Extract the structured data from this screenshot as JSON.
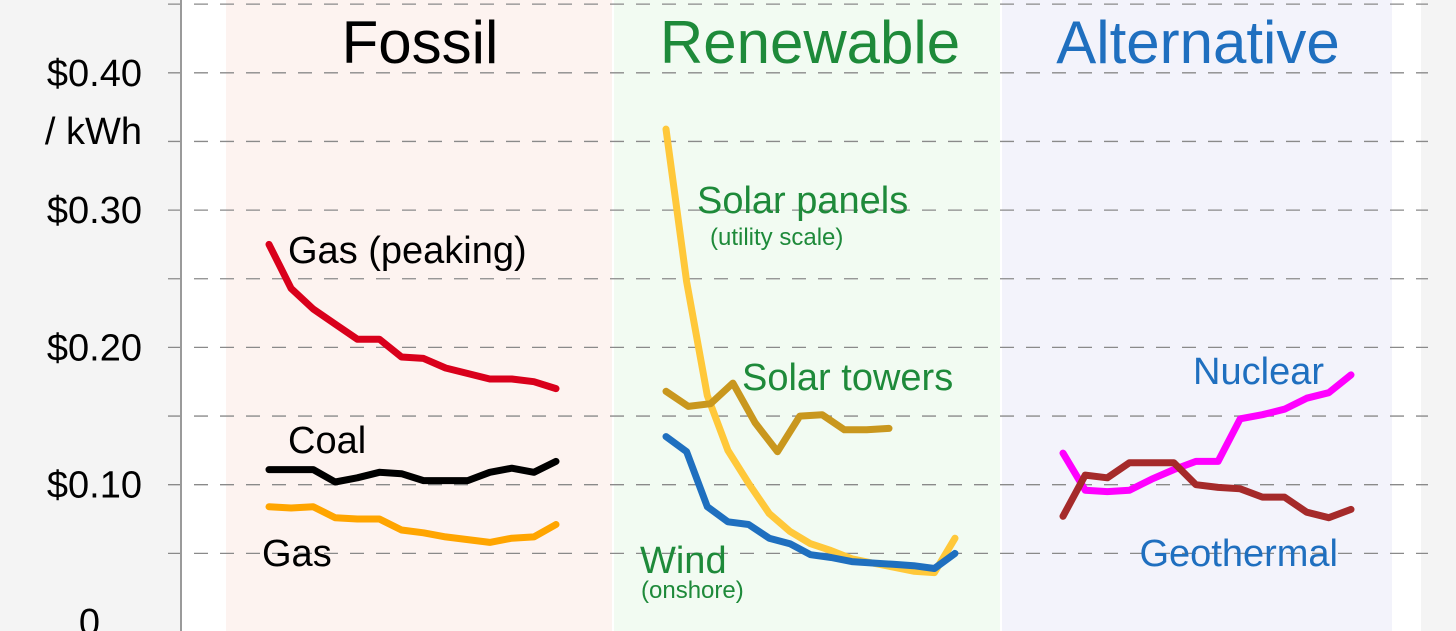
{
  "chart_data": {
    "type": "line",
    "title": "",
    "xlabel": "",
    "ylabel": "",
    "y_unit_label": "/ kWh",
    "ylim": [
      0,
      0.45
    ],
    "y_ticks": [
      {
        "value": 0.0,
        "label": "0"
      },
      {
        "value": 0.1,
        "label": "$0.10"
      },
      {
        "value": 0.2,
        "label": "$0.20"
      },
      {
        "value": 0.3,
        "label": "$0.30"
      },
      {
        "value": 0.4,
        "label": "$0.40"
      }
    ],
    "gridlines": [
      0.05,
      0.1,
      0.15,
      0.2,
      0.25,
      0.3,
      0.35,
      0.4,
      0.45
    ],
    "grid": true,
    "groups": [
      {
        "title": "Fossil",
        "title_color": "#000000",
        "background": "#fdf3f0",
        "series": [
          {
            "name": "Gas (peaking)",
            "color": "#d9001b",
            "values": [
              0.275,
              0.243,
              0.228,
              0.217,
              0.206,
              0.206,
              0.193,
              0.192,
              0.185,
              0.181,
              0.177,
              0.177,
              0.175,
              0.17
            ],
            "label_anchor_index": 1,
            "label_pos": "right"
          },
          {
            "name": "Coal",
            "color": "#000000",
            "values": [
              0.111,
              0.111,
              0.111,
              0.102,
              0.105,
              0.109,
              0.108,
              0.103,
              0.103,
              0.103,
              0.109,
              0.112,
              0.109,
              0.117
            ],
            "label_anchor_index": 1,
            "label_pos": "above"
          },
          {
            "name": "Gas",
            "color": "#ffa500",
            "values": [
              0.084,
              0.083,
              0.084,
              0.076,
              0.075,
              0.075,
              0.067,
              0.065,
              0.062,
              0.06,
              0.058,
              0.061,
              0.062,
              0.071
            ],
            "label_anchor_index": 1,
            "label_pos": "below"
          }
        ]
      },
      {
        "title": "Renewable",
        "title_color": "#1e8a3a",
        "background": "#f2fbf2",
        "series": [
          {
            "name": "Solar panels",
            "sub": "(utility scale)",
            "color": "#ffc83a",
            "values": [
              0.359,
              0.248,
              0.165,
              0.125,
              0.101,
              0.079,
              0.066,
              0.057,
              0.052,
              0.046,
              0.043,
              0.04,
              0.037,
              0.036,
              0.061
            ]
          },
          {
            "name": "Solar towers",
            "color": "#c9971e",
            "values": [
              0.168,
              0.157,
              0.159,
              0.174,
              0.145,
              0.124,
              0.15,
              0.151,
              0.14,
              0.14,
              0.141
            ]
          },
          {
            "name": "Wind",
            "sub": "(onshore)",
            "color": "#1f6fbf",
            "values": [
              0.135,
              0.124,
              0.084,
              0.073,
              0.071,
              0.061,
              0.057,
              0.049,
              0.047,
              0.044,
              0.043,
              0.042,
              0.041,
              0.039,
              0.05
            ]
          }
        ]
      },
      {
        "title": "Alternative",
        "title_color": "#1f6fbf",
        "background": "#f3f3fb",
        "series": [
          {
            "name": "Nuclear",
            "color": "#ff00ff",
            "values": [
              0.123,
              0.096,
              0.095,
              0.096,
              0.104,
              0.111,
              0.117,
              0.117,
              0.148,
              0.151,
              0.155,
              0.163,
              0.167,
              0.18
            ]
          },
          {
            "name": "Geothermal",
            "color": "#a52a2a",
            "values": [
              0.077,
              0.107,
              0.105,
              0.116,
              0.116,
              0.116,
              0.1,
              0.098,
              0.097,
              0.091,
              0.091,
              0.08,
              0.076,
              0.082
            ]
          }
        ]
      }
    ]
  }
}
